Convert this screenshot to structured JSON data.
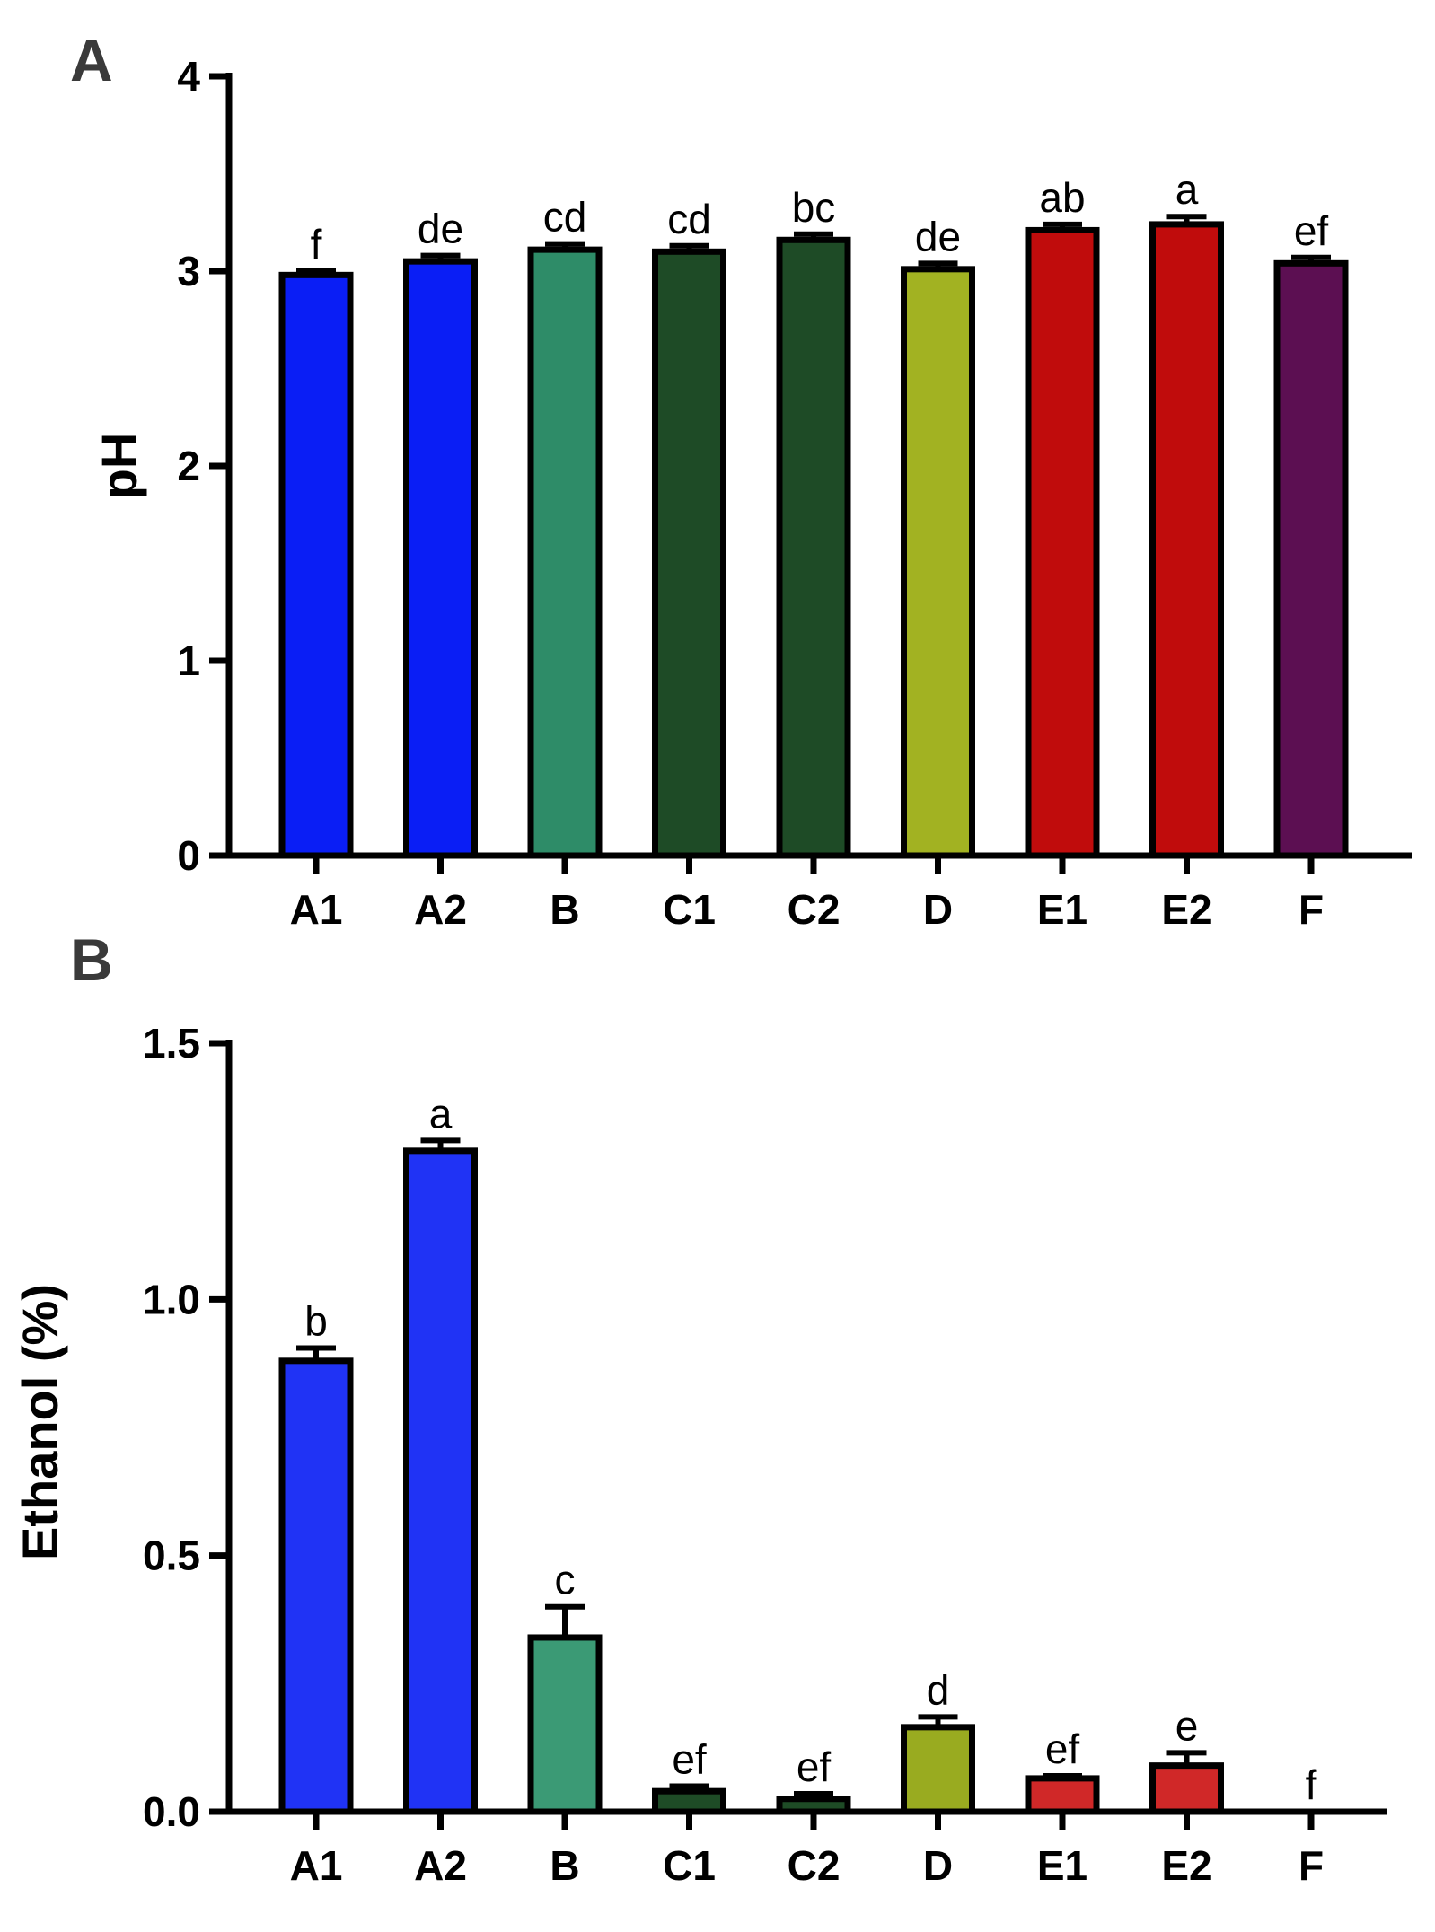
{
  "chart_data": [
    {
      "type": "bar",
      "panel_label": "A",
      "ylabel": "pH",
      "ylim": [
        0,
        4
      ],
      "yticks": [
        "0",
        "1",
        "2",
        "3",
        "4"
      ],
      "categories": [
        "A1",
        "A2",
        "B",
        "C1",
        "C2",
        "D",
        "E1",
        "E2",
        "F"
      ],
      "values": [
        2.98,
        3.05,
        3.11,
        3.1,
        3.16,
        3.01,
        3.21,
        3.24,
        3.04
      ],
      "errors": [
        0.02,
        0.03,
        0.03,
        0.03,
        0.03,
        0.03,
        0.03,
        0.04,
        0.03
      ],
      "significance_labels": [
        "f",
        "de",
        "cd",
        "cd",
        "bc",
        "de",
        "ab",
        "a",
        "ef"
      ],
      "colors": [
        "#0a1ef5",
        "#0a1ef5",
        "#2e8c68",
        "#1e4b26",
        "#1e4b26",
        "#a2b222",
        "#c00c0c",
        "#c00c0c",
        "#5c0f52"
      ]
    },
    {
      "type": "bar",
      "panel_label": "B",
      "ylabel": "Ethanol (%)",
      "ylim": [
        0,
        1.5
      ],
      "yticks": [
        "0.0",
        "0.5",
        "1.0",
        "1.5"
      ],
      "categories": [
        "A1",
        "A2",
        "B",
        "C1",
        "C2",
        "D",
        "E1",
        "E2",
        "F"
      ],
      "values": [
        0.88,
        1.29,
        0.34,
        0.04,
        0.025,
        0.165,
        0.065,
        0.09,
        0.0
      ],
      "errors": [
        0.025,
        0.02,
        0.06,
        0.01,
        0.01,
        0.02,
        0.005,
        0.025,
        0.0
      ],
      "significance_labels": [
        "b",
        "a",
        "c",
        "ef",
        "ef",
        "d",
        "ef",
        "e",
        "f"
      ],
      "colors": [
        "#2033f5",
        "#2033f5",
        "#3b9a75",
        "#1e4b26",
        "#1e4b26",
        "#99ab20",
        "#d02828",
        "#d02828",
        "#5c0f52"
      ]
    }
  ]
}
